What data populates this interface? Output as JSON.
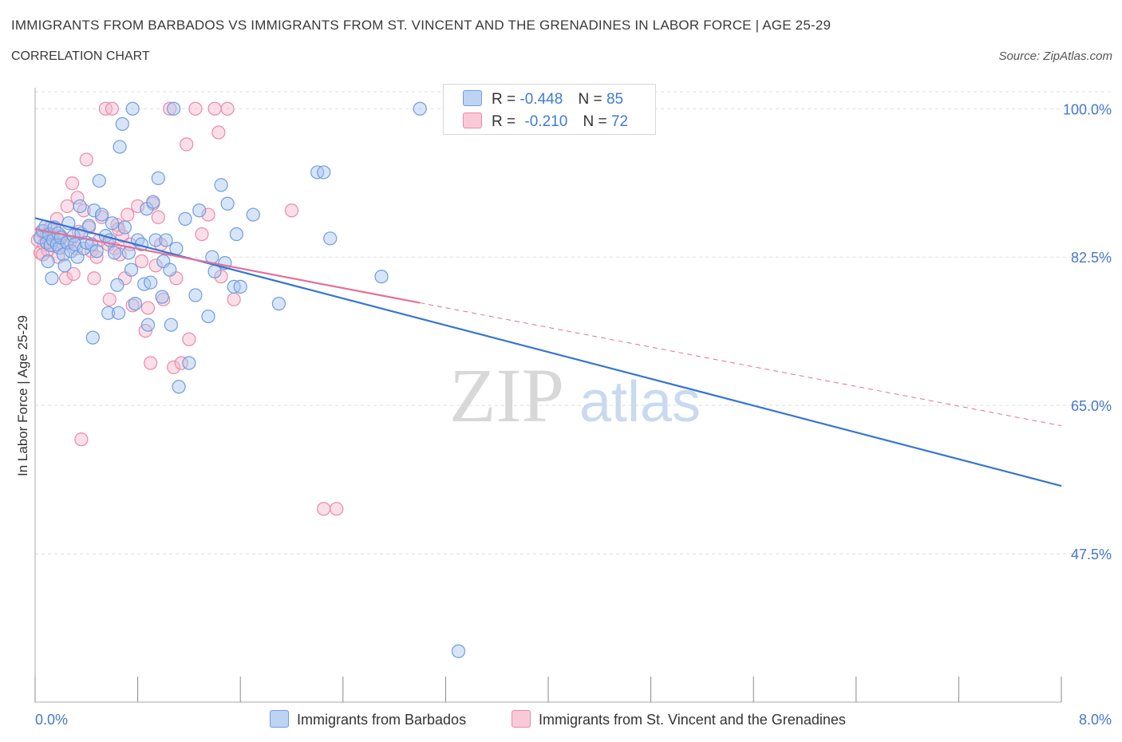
{
  "header": {
    "title": "IMMIGRANTS FROM BARBADOS VS IMMIGRANTS FROM ST. VINCENT AND THE GRENADINES IN LABOR FORCE | AGE 25-29",
    "subtitle": "CORRELATION CHART",
    "source": "Source: ZipAtlas.com"
  },
  "legend": {
    "blue": {
      "r_label": "R =",
      "r_value": "-0.448",
      "n_label": "N =",
      "n_value": "85"
    },
    "pink": {
      "r_label": "R =",
      "r_value": "-0.210",
      "n_label": "N =",
      "n_value": "72"
    }
  },
  "colors": {
    "blue_fill": "#a9c6f0",
    "blue_stroke": "#6e9de0",
    "blue_line": "#3575d0",
    "pink_fill": "#f5b7cb",
    "pink_stroke": "#ea8aab",
    "pink_line": "#e3709a",
    "grid": "#dedede",
    "axis": "#888888",
    "tick_text": "#4478cc"
  },
  "chart_data": {
    "type": "scatter",
    "title": "IMMIGRANTS FROM BARBADOS VS IMMIGRANTS FROM ST. VINCENT AND THE GRENADINES IN LABOR FORCE | AGE 25-29",
    "ylabel": "In Labor Force | Age 25-29",
    "xlabel": "",
    "xlim": [
      0.0,
      8.0
    ],
    "ylim": [
      30.0,
      102.0
    ],
    "x_tick_labels": [
      "0.0%",
      "8.0%"
    ],
    "y_ticks": [
      100.0,
      82.5,
      65.0,
      47.5
    ],
    "y_tick_labels": [
      "100.0%",
      "82.5%",
      "65.0%",
      "47.5%"
    ],
    "watermark": {
      "zip": "ZIP",
      "atlas": "atlas"
    },
    "series": [
      {
        "name": "Immigrants from Barbados",
        "color": "blue",
        "R": -0.448,
        "N": 85,
        "trend": {
          "x": [
            0.0,
            8.0
          ],
          "y": [
            87.1,
            55.5
          ],
          "dashed_from": null
        },
        "points": [
          [
            0.04,
            84.8
          ],
          [
            0.06,
            85.6
          ],
          [
            0.08,
            86.1
          ],
          [
            0.09,
            84.2
          ],
          [
            0.11,
            85.2
          ],
          [
            0.12,
            83.9
          ],
          [
            0.14,
            84.5
          ],
          [
            0.15,
            86.0
          ],
          [
            0.17,
            84.0
          ],
          [
            0.18,
            85.3
          ],
          [
            0.19,
            83.6
          ],
          [
            0.2,
            84.8
          ],
          [
            0.22,
            82.8
          ],
          [
            0.23,
            81.5
          ],
          [
            0.25,
            84.2
          ],
          [
            0.26,
            86.5
          ],
          [
            0.28,
            83.2
          ],
          [
            0.3,
            85.0
          ],
          [
            0.31,
            84.0
          ],
          [
            0.33,
            82.5
          ],
          [
            0.35,
            88.5
          ],
          [
            0.36,
            85.3
          ],
          [
            0.38,
            83.5
          ],
          [
            0.4,
            84.2
          ],
          [
            0.42,
            86.2
          ],
          [
            0.44,
            84.0
          ],
          [
            0.46,
            88.0
          ],
          [
            0.48,
            83.2
          ],
          [
            0.5,
            91.5
          ],
          [
            0.52,
            87.5
          ],
          [
            0.55,
            85.0
          ],
          [
            0.57,
            75.9
          ],
          [
            0.58,
            84.5
          ],
          [
            0.6,
            86.5
          ],
          [
            0.62,
            83.0
          ],
          [
            0.64,
            79.2
          ],
          [
            0.65,
            75.9
          ],
          [
            0.66,
            95.5
          ],
          [
            0.68,
            98.2
          ],
          [
            0.7,
            86.0
          ],
          [
            0.73,
            83.0
          ],
          [
            0.75,
            81.0
          ],
          [
            0.76,
            100.0
          ],
          [
            0.78,
            77.0
          ],
          [
            0.8,
            84.5
          ],
          [
            0.83,
            84.0
          ],
          [
            0.85,
            79.3
          ],
          [
            0.87,
            88.2
          ],
          [
            0.88,
            74.5
          ],
          [
            0.9,
            79.5
          ],
          [
            0.92,
            89.0
          ],
          [
            0.94,
            84.5
          ],
          [
            0.96,
            91.8
          ],
          [
            0.99,
            77.8
          ],
          [
            1.0,
            82.0
          ],
          [
            1.02,
            84.5
          ],
          [
            1.05,
            81.0
          ],
          [
            1.06,
            74.5
          ],
          [
            1.08,
            100.0
          ],
          [
            1.1,
            83.5
          ],
          [
            1.12,
            67.2
          ],
          [
            1.17,
            87.0
          ],
          [
            1.2,
            70.0
          ],
          [
            1.25,
            78.0
          ],
          [
            1.28,
            88.0
          ],
          [
            1.35,
            75.5
          ],
          [
            1.38,
            82.5
          ],
          [
            1.4,
            80.8
          ],
          [
            1.45,
            91.0
          ],
          [
            1.48,
            81.8
          ],
          [
            1.5,
            88.8
          ],
          [
            1.55,
            79.0
          ],
          [
            1.57,
            85.2
          ],
          [
            1.6,
            79.0
          ],
          [
            1.7,
            87.5
          ],
          [
            1.9,
            77.0
          ],
          [
            2.2,
            92.5
          ],
          [
            2.25,
            92.5
          ],
          [
            2.3,
            84.7
          ],
          [
            2.7,
            80.2
          ],
          [
            3.0,
            100.0
          ],
          [
            3.3,
            36.0
          ],
          [
            0.1,
            82.0
          ],
          [
            0.13,
            80.0
          ],
          [
            0.45,
            73.0
          ]
        ]
      },
      {
        "name": "Immigrants from St. Vincent and the Grenadines",
        "color": "pink",
        "R": -0.21,
        "N": 72,
        "trend": {
          "x": [
            0.0,
            8.0
          ],
          "y": [
            85.8,
            62.6
          ],
          "dashed_from": 3.0
        },
        "points": [
          [
            0.02,
            84.5
          ],
          [
            0.04,
            83.0
          ],
          [
            0.05,
            85.5
          ],
          [
            0.07,
            84.0
          ],
          [
            0.09,
            85.2
          ],
          [
            0.1,
            83.3
          ],
          [
            0.12,
            86.0
          ],
          [
            0.14,
            84.8
          ],
          [
            0.15,
            83.8
          ],
          [
            0.17,
            87.0
          ],
          [
            0.18,
            82.5
          ],
          [
            0.2,
            85.0
          ],
          [
            0.22,
            84.0
          ],
          [
            0.24,
            80.0
          ],
          [
            0.25,
            88.5
          ],
          [
            0.27,
            84.2
          ],
          [
            0.29,
            91.2
          ],
          [
            0.3,
            80.5
          ],
          [
            0.32,
            83.5
          ],
          [
            0.34,
            85.5
          ],
          [
            0.36,
            61.0
          ],
          [
            0.38,
            88.0
          ],
          [
            0.4,
            94.0
          ],
          [
            0.42,
            86.0
          ],
          [
            0.44,
            83.2
          ],
          [
            0.46,
            80.0
          ],
          [
            0.48,
            82.5
          ],
          [
            0.5,
            84.5
          ],
          [
            0.52,
            87.2
          ],
          [
            0.55,
            100.0
          ],
          [
            0.57,
            84.0
          ],
          [
            0.58,
            77.5
          ],
          [
            0.6,
            100.0
          ],
          [
            0.62,
            83.5
          ],
          [
            0.64,
            86.3
          ],
          [
            0.66,
            82.8
          ],
          [
            0.68,
            85.0
          ],
          [
            0.7,
            80.0
          ],
          [
            0.72,
            87.5
          ],
          [
            0.74,
            84.0
          ],
          [
            0.76,
            76.8
          ],
          [
            0.8,
            88.5
          ],
          [
            0.83,
            82.0
          ],
          [
            0.86,
            73.8
          ],
          [
            0.88,
            76.5
          ],
          [
            0.9,
            70.0
          ],
          [
            0.92,
            88.8
          ],
          [
            0.94,
            81.5
          ],
          [
            0.96,
            87.2
          ],
          [
            0.98,
            84.0
          ],
          [
            1.0,
            77.5
          ],
          [
            1.05,
            100.0
          ],
          [
            1.08,
            69.5
          ],
          [
            1.1,
            80.0
          ],
          [
            1.14,
            70.0
          ],
          [
            1.18,
            95.8
          ],
          [
            1.2,
            72.8
          ],
          [
            1.25,
            100.0
          ],
          [
            1.3,
            85.2
          ],
          [
            1.35,
            87.5
          ],
          [
            1.4,
            100.0
          ],
          [
            1.43,
            97.2
          ],
          [
            1.45,
            80.2
          ],
          [
            1.5,
            100.0
          ],
          [
            1.55,
            77.5
          ],
          [
            2.0,
            88.0
          ],
          [
            2.25,
            52.8
          ],
          [
            2.35,
            52.8
          ],
          [
            0.06,
            82.8
          ],
          [
            0.11,
            84.3
          ],
          [
            0.33,
            89.5
          ],
          [
            0.65,
            85.8
          ]
        ]
      }
    ]
  },
  "bottom_legend": {
    "blue_label": "Immigrants from Barbados",
    "pink_label": "Immigrants from St. Vincent and the Grenadines"
  }
}
